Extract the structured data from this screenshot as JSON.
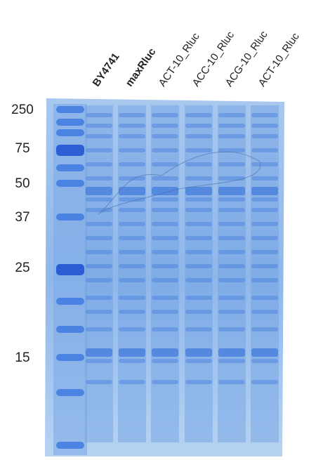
{
  "lanes": [
    "BY4741",
    "maxRluc",
    "ACT-10_Rluc",
    "ACC-10_Rluc",
    "ACG-10_Rluc",
    "ACT-10_Rluc"
  ],
  "markers": [
    "250",
    "75",
    "50",
    "37",
    "25",
    "15"
  ]
}
